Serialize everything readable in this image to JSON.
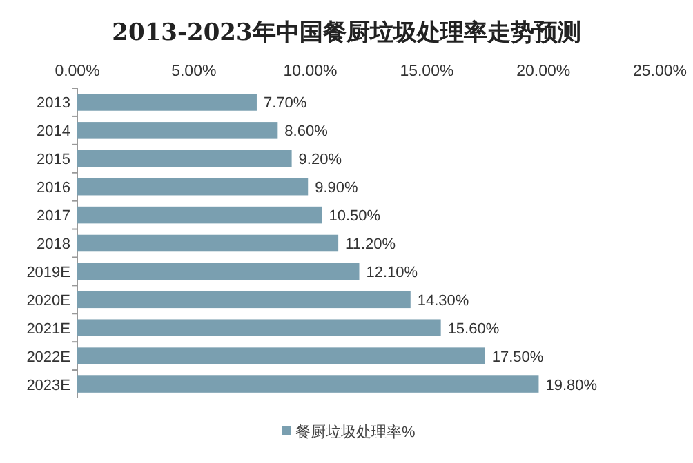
{
  "chart_data": {
    "type": "bar",
    "orientation": "horizontal",
    "title": "2013-2023年中国餐厨垃圾处理率走势预测",
    "categories": [
      "2013",
      "2014",
      "2015",
      "2016",
      "2017",
      "2018",
      "2019E",
      "2020E",
      "2021E",
      "2022E",
      "2023E"
    ],
    "series": [
      {
        "name": "餐厨垃圾处理率%",
        "color": "#7a9fb0",
        "values": [
          7.7,
          8.6,
          9.2,
          9.9,
          10.5,
          11.2,
          12.1,
          14.3,
          15.6,
          17.5,
          19.8
        ],
        "value_labels": [
          "7.70%",
          "8.60%",
          "9.20%",
          "9.90%",
          "10.50%",
          "11.20%",
          "12.10%",
          "14.30%",
          "15.60%",
          "17.50%",
          "19.80%"
        ]
      }
    ],
    "xlim": [
      0,
      25
    ],
    "xticks": [
      {
        "value": 0,
        "label": "0.00%"
      },
      {
        "value": 5,
        "label": "5.00%"
      },
      {
        "value": 10,
        "label": "10.00%"
      },
      {
        "value": 15,
        "label": "15.00%"
      },
      {
        "value": 20,
        "label": "20.00%"
      },
      {
        "value": 25,
        "label": "25.00%"
      }
    ],
    "legend": "bottom"
  }
}
